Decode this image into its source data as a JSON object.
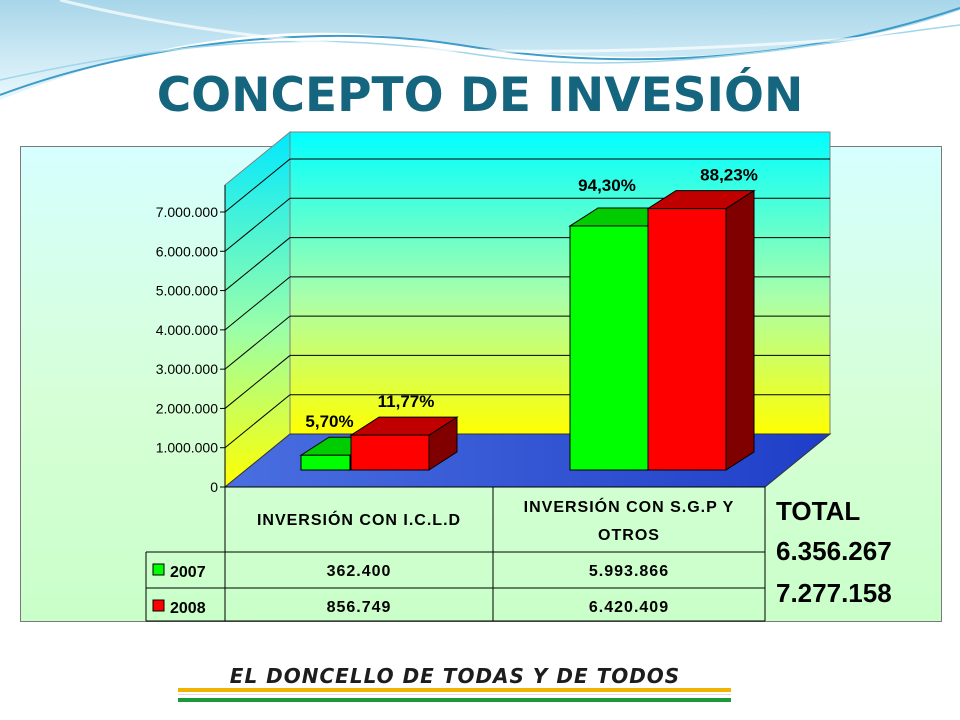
{
  "title": "CONCEPTO DE INVESIÓN",
  "chart_data": {
    "type": "bar",
    "categories": [
      "INVERSIÓN CON I.C.L.D",
      "INVERSIÓN CON S.G.P Y OTROS"
    ],
    "series": [
      {
        "name": "2007",
        "values": [
          362400,
          5993866
        ],
        "labels": [
          "5,70%",
          "94,30%"
        ],
        "color": "#00ff00"
      },
      {
        "name": "2008",
        "values": [
          856749,
          6420409
        ],
        "labels": [
          "11,77%",
          "88,23%"
        ],
        "color": "#ff0000"
      }
    ],
    "table_values": [
      [
        "362.400",
        "5.993.866"
      ],
      [
        "856.749",
        "6.420.409"
      ]
    ],
    "yticks": [
      "0",
      "1.000.000",
      "2.000.000",
      "3.000.000",
      "4.000.000",
      "5.000.000",
      "6.000.000",
      "7.000.000"
    ],
    "ylim": [
      0,
      7000000
    ],
    "grid": true,
    "legend": "table"
  },
  "totals": {
    "label": "TOTAL",
    "values": [
      "6.356.267",
      "7.277.158"
    ]
  },
  "slogan": "EL DONCELLO DE TODAS Y DE TODOS"
}
